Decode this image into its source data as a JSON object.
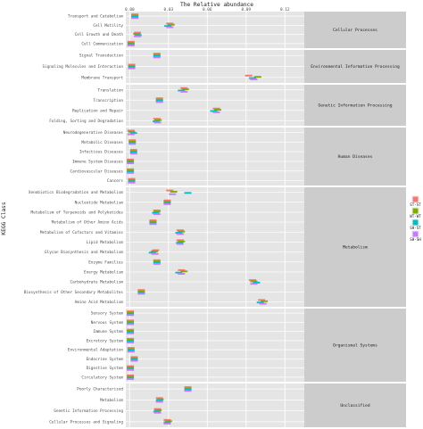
{
  "chart_data": {
    "type": "scatter",
    "title": "",
    "xlabel": "The Relative abundance",
    "ylabel": "KEGG Class",
    "xlim": [
      -0.003,
      0.135
    ],
    "xticks": [
      0.0,
      0.03,
      0.06,
      0.09,
      0.12
    ],
    "xtick_labels": [
      "0.00",
      "0.03",
      "0.06",
      "0.09",
      "0.12"
    ],
    "grid": true,
    "legend_position": "right",
    "series": [
      {
        "name": "ST-ST",
        "color": "#f8766d"
      },
      {
        "name": "WT-WT",
        "color": "#7cae00"
      },
      {
        "name": "SH-ST",
        "color": "#00bfc4"
      },
      {
        "name": "SH-SH",
        "color": "#c77cff"
      }
    ],
    "groups": [
      {
        "name": "Cellular Processes",
        "categories": [
          {
            "name": "Transport and Catabolism",
            "values": [
              0.004,
              0.004,
              0.004,
              0.004
            ]
          },
          {
            "name": "Cell Motility",
            "values": [
              0.031,
              0.032,
              0.0295,
              0.031
            ]
          },
          {
            "name": "Cell Growth and Death",
            "values": [
              0.006,
              0.0055,
              0.0065,
              0.006
            ]
          },
          {
            "name": "Cell Communication",
            "values": [
              0.001,
              0.001,
              0.001,
              0.001
            ]
          }
        ]
      },
      {
        "name": "Environmental Information Processing",
        "categories": [
          {
            "name": "Signal Transduction",
            "values": [
              0.021,
              0.021,
              0.021,
              0.021
            ]
          },
          {
            "name": "Signaling Molecules and Interaction",
            "values": [
              0.0015,
              0.0015,
              0.0015,
              0.0015
            ]
          },
          {
            "name": "Membrane Transport",
            "values": [
              0.092,
              0.099,
              0.095,
              0.096
            ]
          }
        ]
      },
      {
        "name": "Genetic Information Processing",
        "categories": [
          {
            "name": "Translation",
            "values": [
              0.042,
              0.043,
              0.04,
              0.042
            ]
          },
          {
            "name": "Transcription",
            "values": [
              0.023,
              0.023,
              0.023,
              0.023
            ]
          },
          {
            "name": "Replication and Repair",
            "values": [
              0.067,
              0.068,
              0.065,
              0.067
            ]
          },
          {
            "name": "Folding, Sorting and Degradation",
            "values": [
              0.021,
              0.022,
              0.0205,
              0.0215
            ]
          }
        ]
      },
      {
        "name": "Human Diseases",
        "categories": [
          {
            "name": "Neurodegenerative Diseases",
            "values": [
              0.001,
              0.0015,
              0.003,
              0.001
            ]
          },
          {
            "name": "Metabolic Diseases",
            "values": [
              0.002,
              0.002,
              0.002,
              0.002
            ]
          },
          {
            "name": "Infectious Diseases",
            "values": [
              0.003,
              0.003,
              0.003,
              0.003
            ]
          },
          {
            "name": "Immune System Diseases",
            "values": [
              0.0005,
              0.0005,
              0.0005,
              0.0005
            ]
          },
          {
            "name": "Cardiovascular Diseases",
            "values": [
              0.0005,
              0.0005,
              0.0005,
              0.0005
            ]
          },
          {
            "name": "Cancers",
            "values": [
              0.0015,
              0.0015,
              0.0015,
              0.0015
            ]
          }
        ]
      },
      {
        "name": "Metabolism",
        "categories": [
          {
            "name": "Xenobiotics Biodegradation and Metabolism",
            "values": [
              0.031,
              0.034,
              0.045,
              0.033
            ]
          },
          {
            "name": "Nucleotide Metabolism",
            "values": [
              0.029,
              0.029,
              0.029,
              0.029
            ]
          },
          {
            "name": "Metabolism of Terpenoids and Polyketides",
            "values": [
              0.021,
              0.021,
              0.02,
              0.021
            ]
          },
          {
            "name": "Metabolism of Other Amino Acids",
            "values": [
              0.018,
              0.018,
              0.018,
              0.018
            ]
          },
          {
            "name": "Metabolism of Cofactors and Vitamins",
            "values": [
              0.039,
              0.04,
              0.038,
              0.039
            ]
          },
          {
            "name": "Lipid Metabolism",
            "values": [
              0.039,
              0.04,
              0.0385,
              0.039
            ]
          },
          {
            "name": "Glycan Biosynthesis and Metabolism",
            "values": [
              0.02,
              0.019,
              0.0175,
              0.0195
            ]
          },
          {
            "name": "Enzyme Families",
            "values": [
              0.021,
              0.021,
              0.021,
              0.021
            ]
          },
          {
            "name": "Energy Metabolism",
            "values": [
              0.04,
              0.042,
              0.038,
              0.04
            ]
          },
          {
            "name": "Carbohydrate Metabolism",
            "values": [
              0.095,
              0.096,
              0.098,
              0.096
            ]
          },
          {
            "name": "Biosynthesis of Other Secondary Metabolites",
            "values": [
              0.009,
              0.009,
              0.009,
              0.009
            ]
          },
          {
            "name": "Amino Acid Metabolism",
            "values": [
              0.102,
              0.104,
              0.101,
              0.103
            ]
          }
        ]
      },
      {
        "name": "Organismal Systems",
        "categories": [
          {
            "name": "Sensory System",
            "values": [
              0.0005,
              0.0005,
              0.0005,
              0.0005
            ]
          },
          {
            "name": "Nervous System",
            "values": [
              0.0005,
              0.0005,
              0.0005,
              0.0005
            ]
          },
          {
            "name": "Immune System",
            "values": [
              0.0005,
              0.0005,
              0.0005,
              0.0005
            ]
          },
          {
            "name": "Excretory System",
            "values": [
              0.0005,
              0.0005,
              0.0005,
              0.0005
            ]
          },
          {
            "name": "Environmental Adaptation",
            "values": [
              0.001,
              0.001,
              0.001,
              0.001
            ]
          },
          {
            "name": "Endocrine System",
            "values": [
              0.0035,
              0.0035,
              0.0035,
              0.0035
            ]
          },
          {
            "name": "Digestive System",
            "values": [
              0.0005,
              0.0005,
              0.0005,
              0.0005
            ]
          },
          {
            "name": "Circulatory System",
            "values": [
              0.0005,
              0.0005,
              0.0005,
              0.0005
            ]
          }
        ]
      },
      {
        "name": "Unclassified",
        "categories": [
          {
            "name": "Poorly Characterized",
            "values": [
              0.045,
              0.045,
              0.045,
              0.045
            ]
          },
          {
            "name": "Metabolism",
            "values": [
              0.023,
              0.0235,
              0.023,
              0.023
            ]
          },
          {
            "name": "Genetic Information Processing",
            "values": [
              0.0215,
              0.022,
              0.021,
              0.0215
            ]
          },
          {
            "name": "Cellular Processes and Signaling",
            "values": [
              0.029,
              0.03,
              0.029,
              0.029
            ]
          }
        ]
      }
    ]
  }
}
